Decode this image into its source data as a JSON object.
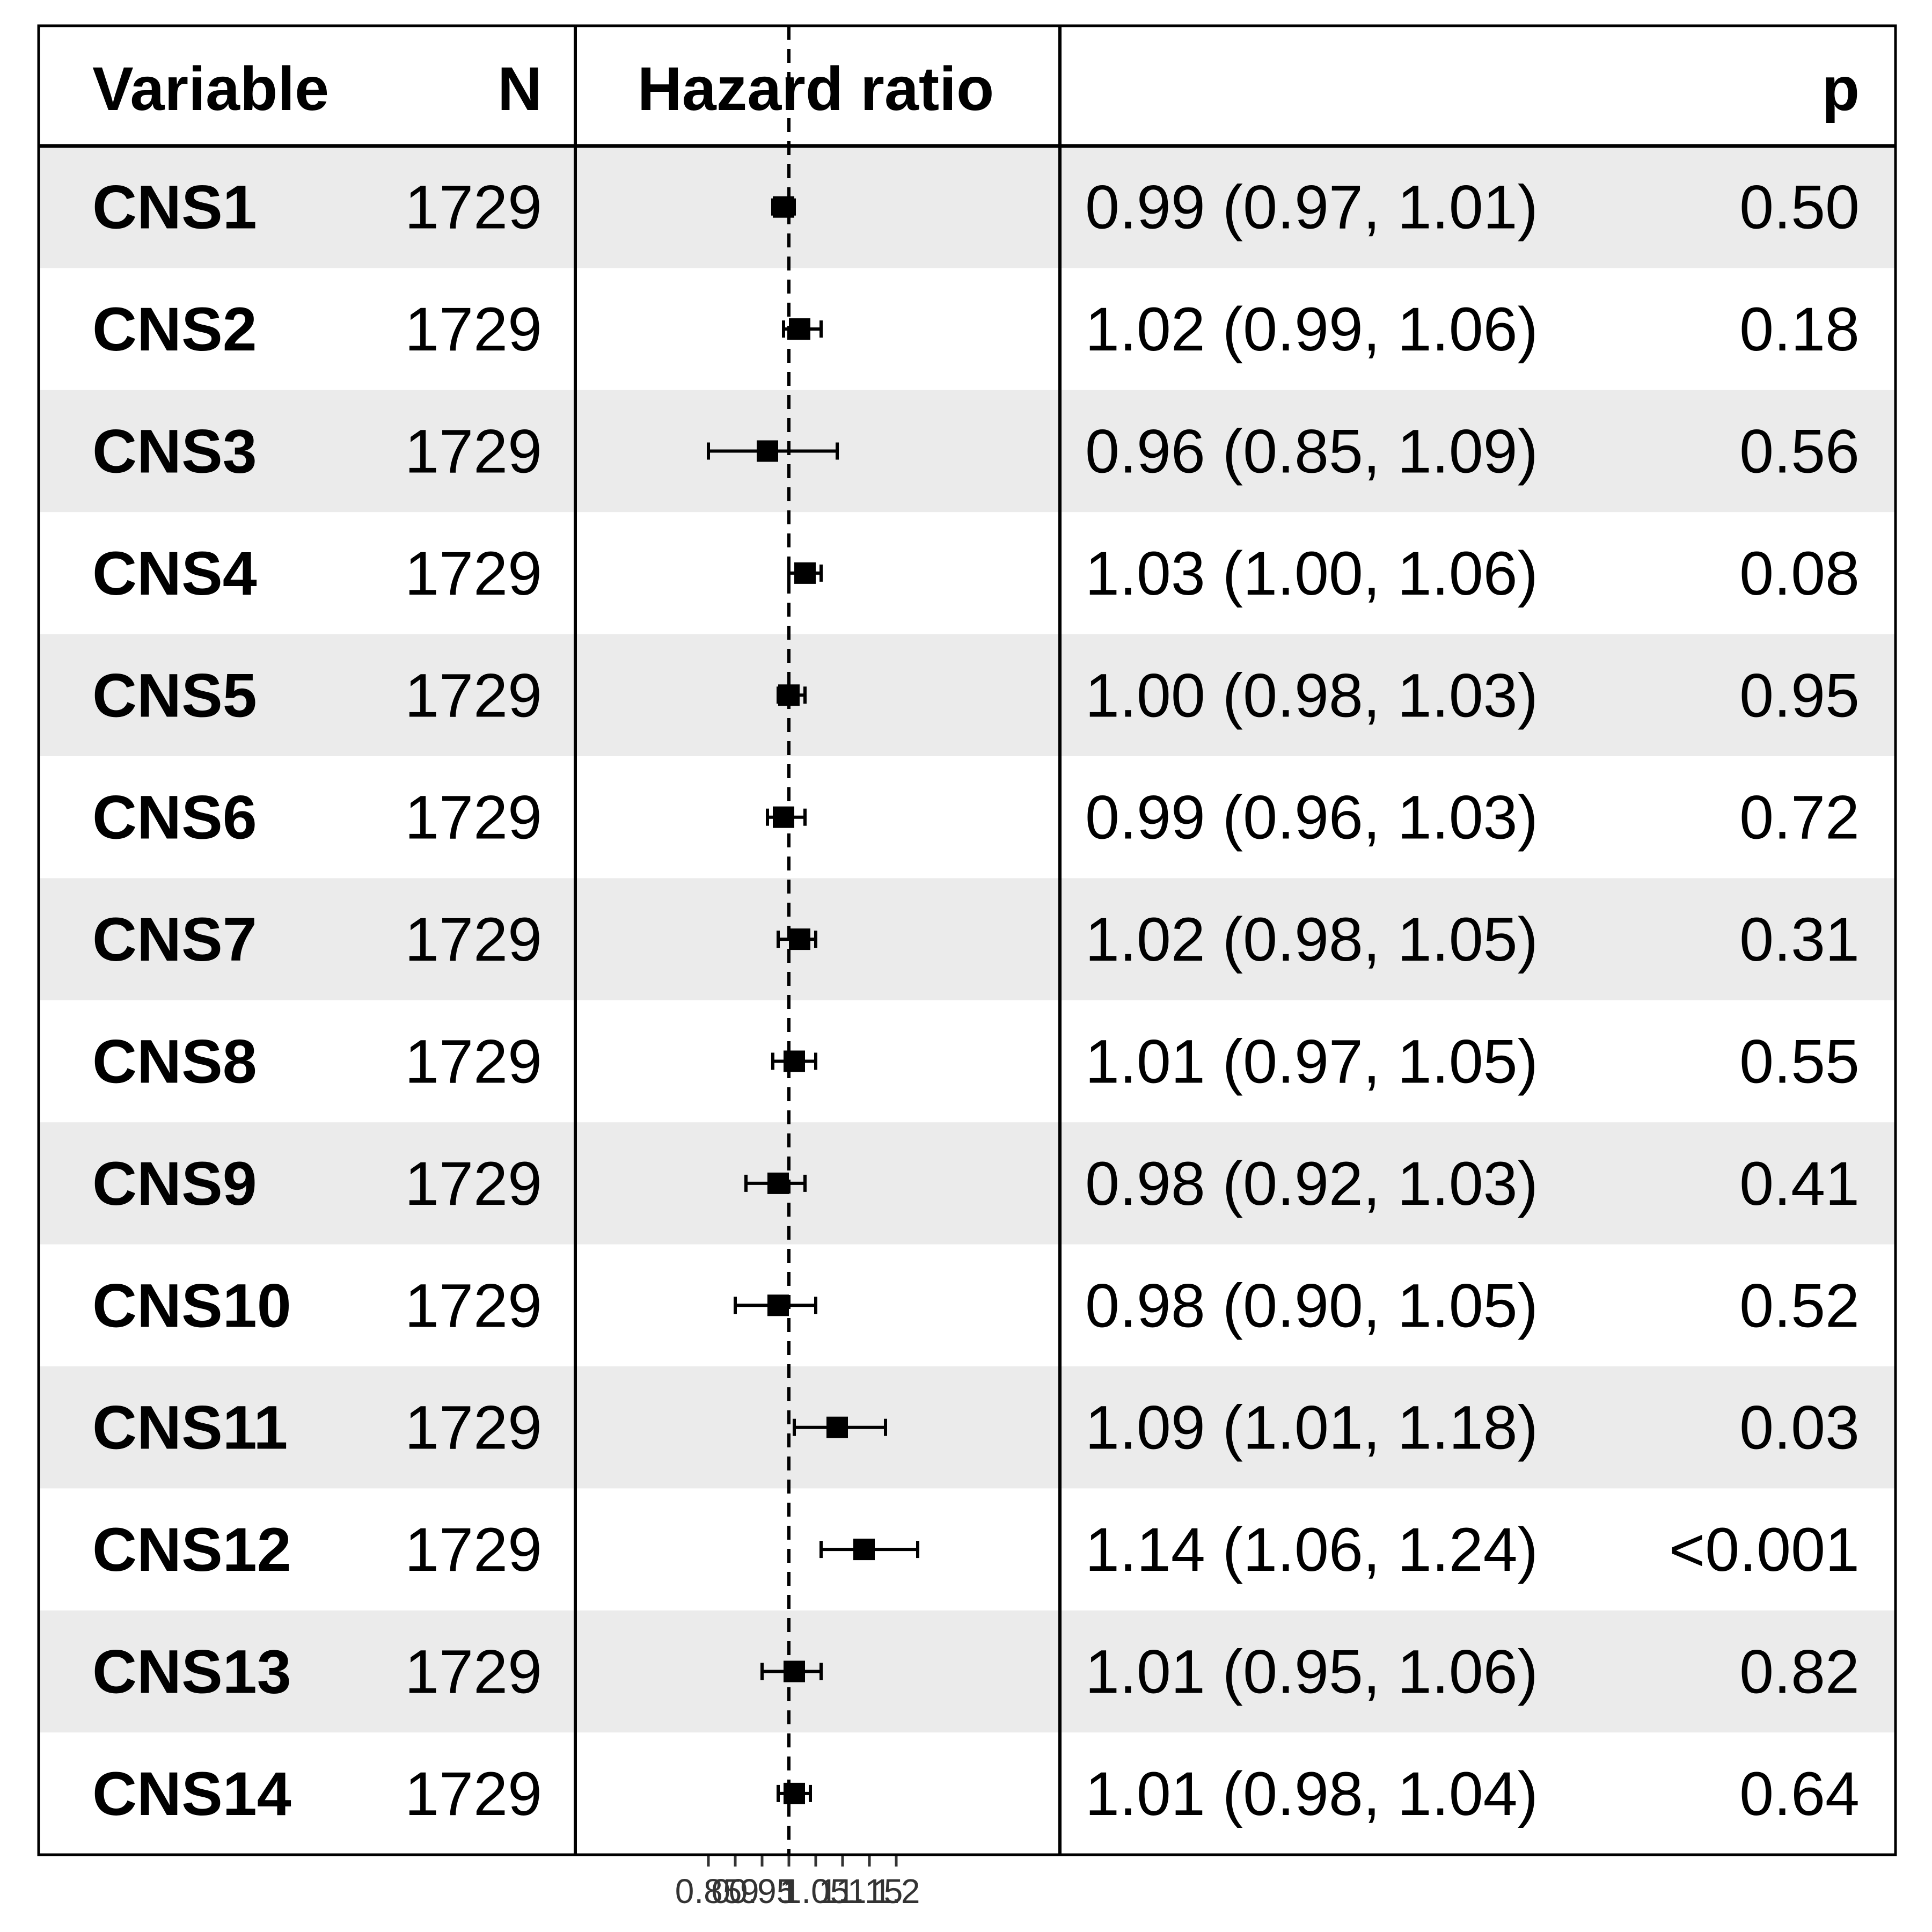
{
  "headers": {
    "variable": "Variable",
    "n": "N",
    "hazard_ratio": "Hazard ratio",
    "p": "p"
  },
  "colors": {
    "stripe": "#ebebeb",
    "ink": "#000000",
    "tick_text": "#333333"
  },
  "chart_data": {
    "type": "forest",
    "reference_line": 1,
    "x_ticks": [
      0.85,
      0.9,
      0.95,
      1,
      1.05,
      1.1,
      1.15,
      1.2
    ],
    "x_tick_labels": [
      "0.85",
      "0.9",
      "0.95",
      "1",
      "1.05",
      "1.1",
      "1.15",
      "1.2"
    ],
    "xlim": [
      0.83,
      1.24
    ],
    "rows": [
      {
        "variable": "CNS1",
        "n": "1729",
        "hr": 0.99,
        "lo": 0.97,
        "hi": 1.01,
        "estimate_text": "0.99 (0.97, 1.01)",
        "p": "0.50"
      },
      {
        "variable": "CNS2",
        "n": "1729",
        "hr": 1.02,
        "lo": 0.99,
        "hi": 1.06,
        "estimate_text": "1.02 (0.99, 1.06)",
        "p": "0.18"
      },
      {
        "variable": "CNS3",
        "n": "1729",
        "hr": 0.96,
        "lo": 0.85,
        "hi": 1.09,
        "estimate_text": "0.96 (0.85, 1.09)",
        "p": "0.56"
      },
      {
        "variable": "CNS4",
        "n": "1729",
        "hr": 1.03,
        "lo": 1.0,
        "hi": 1.06,
        "estimate_text": "1.03 (1.00, 1.06)",
        "p": "0.08"
      },
      {
        "variable": "CNS5",
        "n": "1729",
        "hr": 1.0,
        "lo": 0.98,
        "hi": 1.03,
        "estimate_text": "1.00 (0.98, 1.03)",
        "p": "0.95"
      },
      {
        "variable": "CNS6",
        "n": "1729",
        "hr": 0.99,
        "lo": 0.96,
        "hi": 1.03,
        "estimate_text": "0.99 (0.96, 1.03)",
        "p": "0.72"
      },
      {
        "variable": "CNS7",
        "n": "1729",
        "hr": 1.02,
        "lo": 0.98,
        "hi": 1.05,
        "estimate_text": "1.02 (0.98, 1.05)",
        "p": "0.31"
      },
      {
        "variable": "CNS8",
        "n": "1729",
        "hr": 1.01,
        "lo": 0.97,
        "hi": 1.05,
        "estimate_text": "1.01 (0.97, 1.05)",
        "p": "0.55"
      },
      {
        "variable": "CNS9",
        "n": "1729",
        "hr": 0.98,
        "lo": 0.92,
        "hi": 1.03,
        "estimate_text": "0.98 (0.92, 1.03)",
        "p": "0.41"
      },
      {
        "variable": "CNS10",
        "n": "1729",
        "hr": 0.98,
        "lo": 0.9,
        "hi": 1.05,
        "estimate_text": "0.98 (0.90, 1.05)",
        "p": "0.52"
      },
      {
        "variable": "CNS11",
        "n": "1729",
        "hr": 1.09,
        "lo": 1.01,
        "hi": 1.18,
        "estimate_text": "1.09 (1.01, 1.18)",
        "p": "0.03"
      },
      {
        "variable": "CNS12",
        "n": "1729",
        "hr": 1.14,
        "lo": 1.06,
        "hi": 1.24,
        "estimate_text": "1.14 (1.06, 1.24)",
        "p": "<0.001"
      },
      {
        "variable": "CNS13",
        "n": "1729",
        "hr": 1.01,
        "lo": 0.95,
        "hi": 1.06,
        "estimate_text": "1.01 (0.95, 1.06)",
        "p": "0.82"
      },
      {
        "variable": "CNS14",
        "n": "1729",
        "hr": 1.01,
        "lo": 0.98,
        "hi": 1.04,
        "estimate_text": "1.01 (0.98, 1.04)",
        "p": "0.64"
      }
    ]
  }
}
